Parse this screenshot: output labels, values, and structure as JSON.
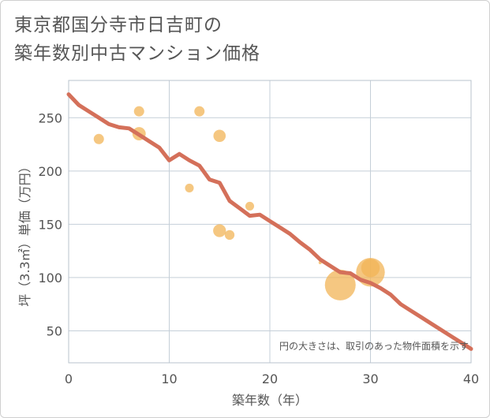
{
  "title_lines": [
    "東京都国分寺市日吉町の",
    "築年数別中古マンション価格"
  ],
  "colors": {
    "line": "#d4705a",
    "bubble": "#f2b457",
    "grid": "#c5cfd8",
    "plot_border": "#b9c3cc"
  },
  "chart_data": {
    "type": "scatter",
    "title": "東京都国分寺市日吉町の築年数別中古マンション価格",
    "xlabel": "築年数（年）",
    "ylabel": "坪（3.3㎡）単価（万円）",
    "xlim": [
      0,
      40
    ],
    "ylim": [
      20,
      285
    ],
    "xticks": [
      0,
      10,
      20,
      30,
      40
    ],
    "yticks": [
      50,
      100,
      150,
      200,
      250
    ],
    "note": "円の大きさは、取引のあった物件面積を示す",
    "bubbles": [
      {
        "x": 3,
        "y": 230,
        "size": 1.0
      },
      {
        "x": 7,
        "y": 256,
        "size": 1.0
      },
      {
        "x": 7,
        "y": 235,
        "size": 1.3
      },
      {
        "x": 12,
        "y": 184,
        "size": 0.85
      },
      {
        "x": 13,
        "y": 256,
        "size": 1.0
      },
      {
        "x": 15,
        "y": 233,
        "size": 1.2
      },
      {
        "x": 15,
        "y": 144,
        "size": 1.25
      },
      {
        "x": 16,
        "y": 140,
        "size": 0.95
      },
      {
        "x": 18,
        "y": 167,
        "size": 0.85
      },
      {
        "x": 25,
        "y": 114,
        "size": 0.3
      },
      {
        "x": 27,
        "y": 93,
        "size": 3.0
      },
      {
        "x": 30,
        "y": 105,
        "size": 2.8
      },
      {
        "x": 30,
        "y": 109,
        "size": 1.8
      }
    ],
    "series": [
      {
        "name": "trend",
        "x": [
          0,
          1,
          2,
          3,
          4,
          5,
          6,
          7,
          8,
          9,
          10,
          11,
          12,
          13,
          14,
          15,
          16,
          17,
          18,
          19,
          20,
          21,
          22,
          23,
          24,
          25,
          26,
          27,
          28,
          29,
          30,
          31,
          32,
          33,
          34,
          35,
          36,
          37,
          38,
          39,
          40
        ],
        "values": [
          272,
          262,
          256,
          250,
          244,
          241,
          240,
          234,
          228,
          222,
          210,
          216,
          210,
          205,
          192,
          189,
          172,
          165,
          158,
          159,
          153,
          147,
          141,
          133,
          126,
          117,
          111,
          105,
          104,
          98,
          95,
          90,
          84,
          75,
          69,
          63,
          57,
          51,
          45,
          39,
          33
        ]
      }
    ]
  }
}
